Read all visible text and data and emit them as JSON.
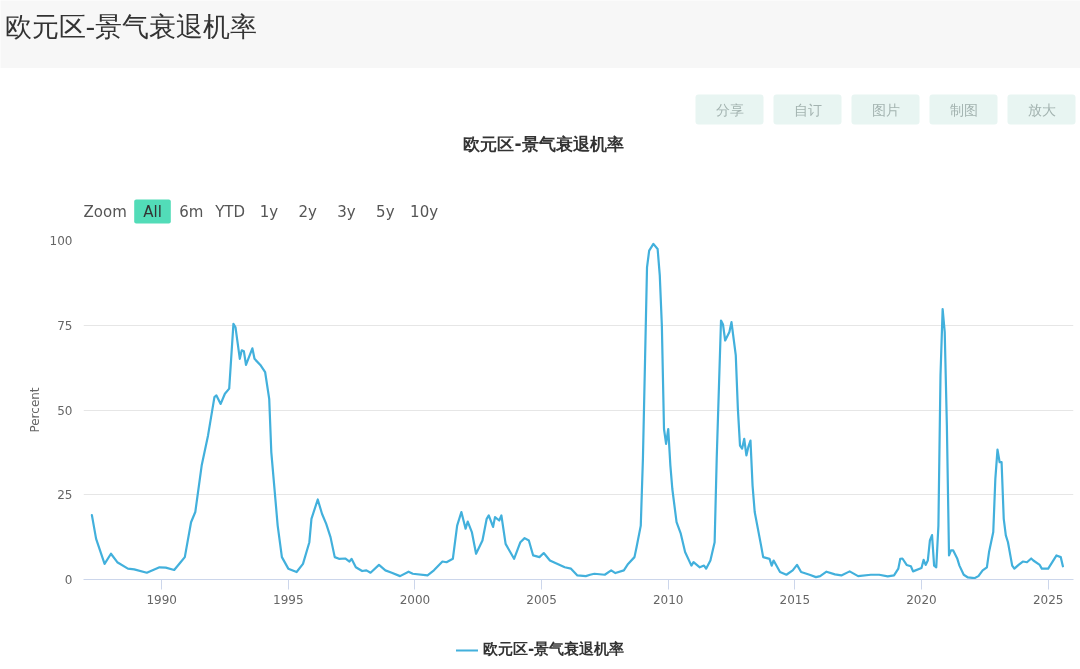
{
  "chart_data": {
    "type": "line",
    "title": "欧元区-景气衰退机率",
    "subtitle": "欧元区-景气衰退机率",
    "ylabel": "Percent",
    "annotations": [
      "Zoom",
      "All",
      "6m",
      "YTD",
      "1y",
      "2y",
      "3y",
      "5y",
      "10y",
      "分享",
      "自订",
      "图片",
      "制图",
      "放大"
    ],
    "xlim": [
      "1986-12",
      "2026-01"
    ],
    "xticks": [
      "1990",
      "1995",
      "2000",
      "2005",
      "2010",
      "2015",
      "2020",
      "2025"
    ],
    "ylim": [
      0,
      100
    ],
    "yticks": [
      0,
      25,
      50,
      75,
      100
    ],
    "grid": "y",
    "legend": "bottom",
    "line_style": "solid",
    "series": [
      {
        "name": "欧元区-景气衰退机率",
        "color": "#42b0dc",
        "x": [
          "1987-04",
          "1987-06",
          "1987-10",
          "1988-01",
          "1988-04",
          "1988-09",
          "1988-12",
          "1989-06",
          "1989-12",
          "1990-03",
          "1990-07",
          "1990-10",
          "1990-12",
          "1991-03",
          "1991-05",
          "1991-08",
          "1991-11",
          "1992-02",
          "1992-03",
          "1992-05",
          "1992-07",
          "1992-09",
          "1992-11",
          "1992-12",
          "1993-02",
          "1993-03",
          "1993-04",
          "1993-05",
          "1993-08",
          "1993-09",
          "1993-12",
          "1994-02",
          "1994-04",
          "1994-05",
          "1994-08",
          "1994-10",
          "1995-01",
          "1995-05",
          "1995-08",
          "1995-11",
          "1995-12",
          "1996-03",
          "1996-05",
          "1996-07",
          "1996-09",
          "1996-11",
          "1997-01",
          "1997-04",
          "1997-06",
          "1997-07",
          "1997-09",
          "1997-12",
          "1998-02",
          "1998-04",
          "1998-08",
          "1998-11",
          "1999-02",
          "1999-06",
          "1999-10",
          "1999-12",
          "2000-07",
          "2000-10",
          "2001-02",
          "2001-04",
          "2001-07",
          "2001-09",
          "2001-11",
          "2002-01",
          "2002-02",
          "2002-04",
          "2002-06",
          "2002-09",
          "2002-11",
          "2002-12",
          "2003-02",
          "2003-03",
          "2003-05",
          "2003-06",
          "2003-08",
          "2003-12",
          "2004-03",
          "2004-05",
          "2004-07",
          "2004-09",
          "2004-12",
          "2005-02",
          "2005-05",
          "2005-06",
          "2005-12",
          "2006-03",
          "2006-06",
          "2006-10",
          "2006-12",
          "2007-02",
          "2007-07",
          "2007-10",
          "2007-12",
          "2008-04",
          "2008-06",
          "2008-09",
          "2008-10",
          "2008-12",
          "2009-01",
          "2009-02",
          "2009-03",
          "2009-04",
          "2009-06",
          "2009-08",
          "2009-09",
          "2009-10",
          "2009-11",
          "2009-12",
          "2010-01",
          "2010-02",
          "2010-03",
          "2010-05",
          "2010-07",
          "2010-09",
          "2010-12",
          "2011-01",
          "2011-04",
          "2011-06",
          "2011-07",
          "2011-09",
          "2011-11",
          "2011-12",
          "2012-02",
          "2012-03",
          "2012-04",
          "2012-06",
          "2012-07",
          "2012-09",
          "2012-10",
          "2012-11",
          "2012-12",
          "2013-01",
          "2013-02",
          "2013-03",
          "2013-04",
          "2013-05",
          "2013-06",
          "2013-09",
          "2013-10",
          "2014-01",
          "2014-02",
          "2014-03",
          "2014-06",
          "2014-09",
          "2014-12",
          "2015-02",
          "2015-04",
          "2015-08",
          "2015-11",
          "2016-01",
          "2016-04",
          "2016-08",
          "2016-11",
          "2017-03",
          "2017-07",
          "2018-01",
          "2018-05",
          "2018-09",
          "2018-12",
          "2019-02",
          "2019-03",
          "2019-04",
          "2019-06",
          "2019-08",
          "2019-09",
          "2020-01",
          "2020-02",
          "2020-03",
          "2020-04",
          "2020-05",
          "2020-06",
          "2020-07",
          "2020-08",
          "2020-09",
          "2020-10",
          "2020-11",
          "2020-12",
          "2021-01",
          "2021-02",
          "2021-03",
          "2021-04",
          "2021-06",
          "2021-07",
          "2021-09",
          "2021-11",
          "2022-02",
          "2022-04",
          "2022-06",
          "2022-08",
          "2022-09",
          "2022-11",
          "2022-12",
          "2023-01",
          "2023-02",
          "2023-03",
          "2023-04",
          "2023-05",
          "2023-06",
          "2023-08",
          "2023-09",
          "2023-11",
          "2024-01",
          "2024-03",
          "2024-05",
          "2024-06",
          "2024-09",
          "2024-10",
          "2025-01",
          "2025-03",
          "2025-05",
          "2025-07",
          "2025-08"
        ],
        "values": [
          19,
          12,
          4.6,
          7.6,
          5.1,
          3.2,
          3.0,
          2.0,
          3.6,
          3.5,
          2.8,
          5.1,
          6.6,
          16.9,
          19.9,
          33.6,
          42.5,
          53.8,
          54.3,
          51.8,
          54.8,
          56.3,
          75.4,
          74.4,
          65.1,
          67.6,
          67.3,
          63.3,
          68.2,
          65.1,
          63.1,
          61.2,
          53.3,
          37.6,
          15.9,
          6.6,
          3.2,
          2.2,
          4.6,
          11.0,
          17.9,
          23.6,
          19.4,
          16.4,
          12.5,
          6.6,
          6.1,
          6.2,
          5.3,
          6.1,
          3.6,
          2.5,
          2.7,
          2.0,
          4.3,
          2.7,
          2.0,
          1.0,
          2.3,
          1.7,
          1.2,
          2.7,
          5.3,
          5.1,
          6.1,
          15.9,
          19.9,
          15.0,
          17.1,
          14.0,
          7.6,
          11.5,
          17.9,
          18.9,
          15.5,
          18.4,
          17.4,
          18.9,
          10.5,
          6.1,
          11.0,
          12.2,
          11.5,
          7.1,
          6.6,
          7.8,
          5.6,
          5.3,
          3.6,
          3.2,
          1.2,
          1.0,
          1.4,
          1.7,
          1.4,
          2.7,
          1.9,
          2.7,
          4.6,
          6.6,
          9.5,
          15.9,
          35.6,
          65.1,
          92.1,
          97.0,
          99.0,
          97.5,
          89.7,
          74.9,
          44.4,
          40.0,
          44.4,
          33.6,
          26.7,
          16.9,
          13.5,
          8.1,
          4.1,
          5.1,
          3.6,
          4.1,
          3.2,
          5.6,
          11.0,
          35.6,
          76.4,
          75.2,
          70.5,
          73.0,
          75.9,
          66.1,
          50.4,
          39.5,
          38.6,
          41.5,
          36.6,
          39.1,
          41.0,
          27.7,
          19.9,
          10.0,
          6.6,
          6.1,
          4.1,
          5.6,
          2.2,
          1.4,
          2.7,
          4.3,
          2.2,
          1.4,
          0.7,
          1.0,
          2.3,
          1.5,
          1.2,
          2.4,
          1.0,
          1.4,
          1.4,
          0.9,
          1.2,
          3.2,
          6.1,
          6.2,
          4.3,
          3.9,
          2.4,
          3.4,
          5.8,
          4.3,
          5.6,
          11.5,
          13.1,
          4.1,
          3.6,
          15.9,
          60.2,
          79.8,
          73.0,
          45.4,
          7.1,
          8.6,
          8.6,
          6.1,
          4.1,
          1.4,
          0.6,
          0.4,
          1.0,
          2.7,
          3.6,
          8.1,
          14.0,
          29.7,
          38.3,
          34.6,
          34.6,
          17.9,
          13.0,
          11.0,
          4.1,
          3.2,
          4.3,
          5.3,
          5.1,
          6.2,
          5.6,
          4.3,
          3.2,
          3.2,
          5.1,
          7.1,
          6.6,
          3.9
        ]
      }
    ]
  }
}
